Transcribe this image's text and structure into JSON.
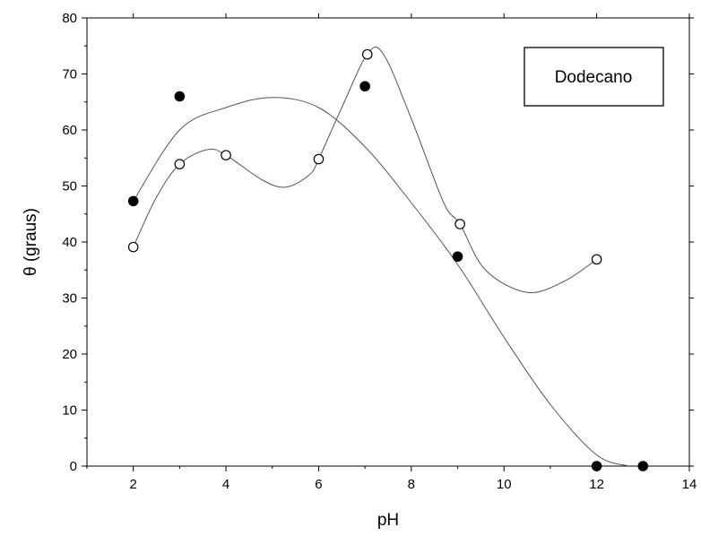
{
  "chart_data": {
    "type": "scatter",
    "xlabel": "pH",
    "ylabel": "θ (graus)",
    "xlim": [
      1,
      14
    ],
    "ylim": [
      0,
      80
    ],
    "x_ticks": [
      2,
      4,
      6,
      8,
      10,
      12,
      14
    ],
    "y_ticks": [
      0,
      10,
      20,
      30,
      40,
      50,
      60,
      70,
      80
    ],
    "legend_label": "Dodecano",
    "legend_position": "top-right",
    "grid": false,
    "series": [
      {
        "marker": "filled-circle",
        "color": "#000000",
        "points": [
          {
            "x": 2,
            "y": 47.3
          },
          {
            "x": 3,
            "y": 66.0
          },
          {
            "x": 7,
            "y": 67.8
          },
          {
            "x": 9,
            "y": 37.4
          },
          {
            "x": 12,
            "y": 0
          },
          {
            "x": 13,
            "y": 0
          }
        ],
        "fit_curve": [
          [
            2,
            47.3
          ],
          [
            3,
            60
          ],
          [
            4,
            64
          ],
          [
            5,
            65.8
          ],
          [
            6,
            64
          ],
          [
            7,
            57
          ],
          [
            8,
            47
          ],
          [
            9,
            36
          ],
          [
            10,
            23
          ],
          [
            11,
            11
          ],
          [
            12,
            2
          ],
          [
            12.7,
            0
          ]
        ]
      },
      {
        "marker": "open-circle",
        "color": "#000000",
        "points": [
          {
            "x": 2,
            "y": 39.1
          },
          {
            "x": 3,
            "y": 53.9
          },
          {
            "x": 4,
            "y": 55.5
          },
          {
            "x": 6,
            "y": 54.8
          },
          {
            "x": 7.05,
            "y": 73.5
          },
          {
            "x": 9.05,
            "y": 43.2
          },
          {
            "x": 12,
            "y": 36.9
          }
        ],
        "fit_curve": [
          [
            2,
            39.1
          ],
          [
            2.5,
            48
          ],
          [
            3,
            53.9
          ],
          [
            3.6,
            56.5
          ],
          [
            4,
            55.5
          ],
          [
            4.8,
            51
          ],
          [
            5.3,
            49.8
          ],
          [
            5.8,
            52
          ],
          [
            6,
            54.8
          ],
          [
            6.5,
            64
          ],
          [
            7.05,
            73.5
          ],
          [
            7.4,
            73.5
          ],
          [
            8,
            62
          ],
          [
            8.7,
            47
          ],
          [
            9.05,
            43.2
          ],
          [
            9.6,
            35
          ],
          [
            10.5,
            31
          ],
          [
            11.3,
            33
          ],
          [
            12,
            36.9
          ]
        ]
      }
    ]
  }
}
